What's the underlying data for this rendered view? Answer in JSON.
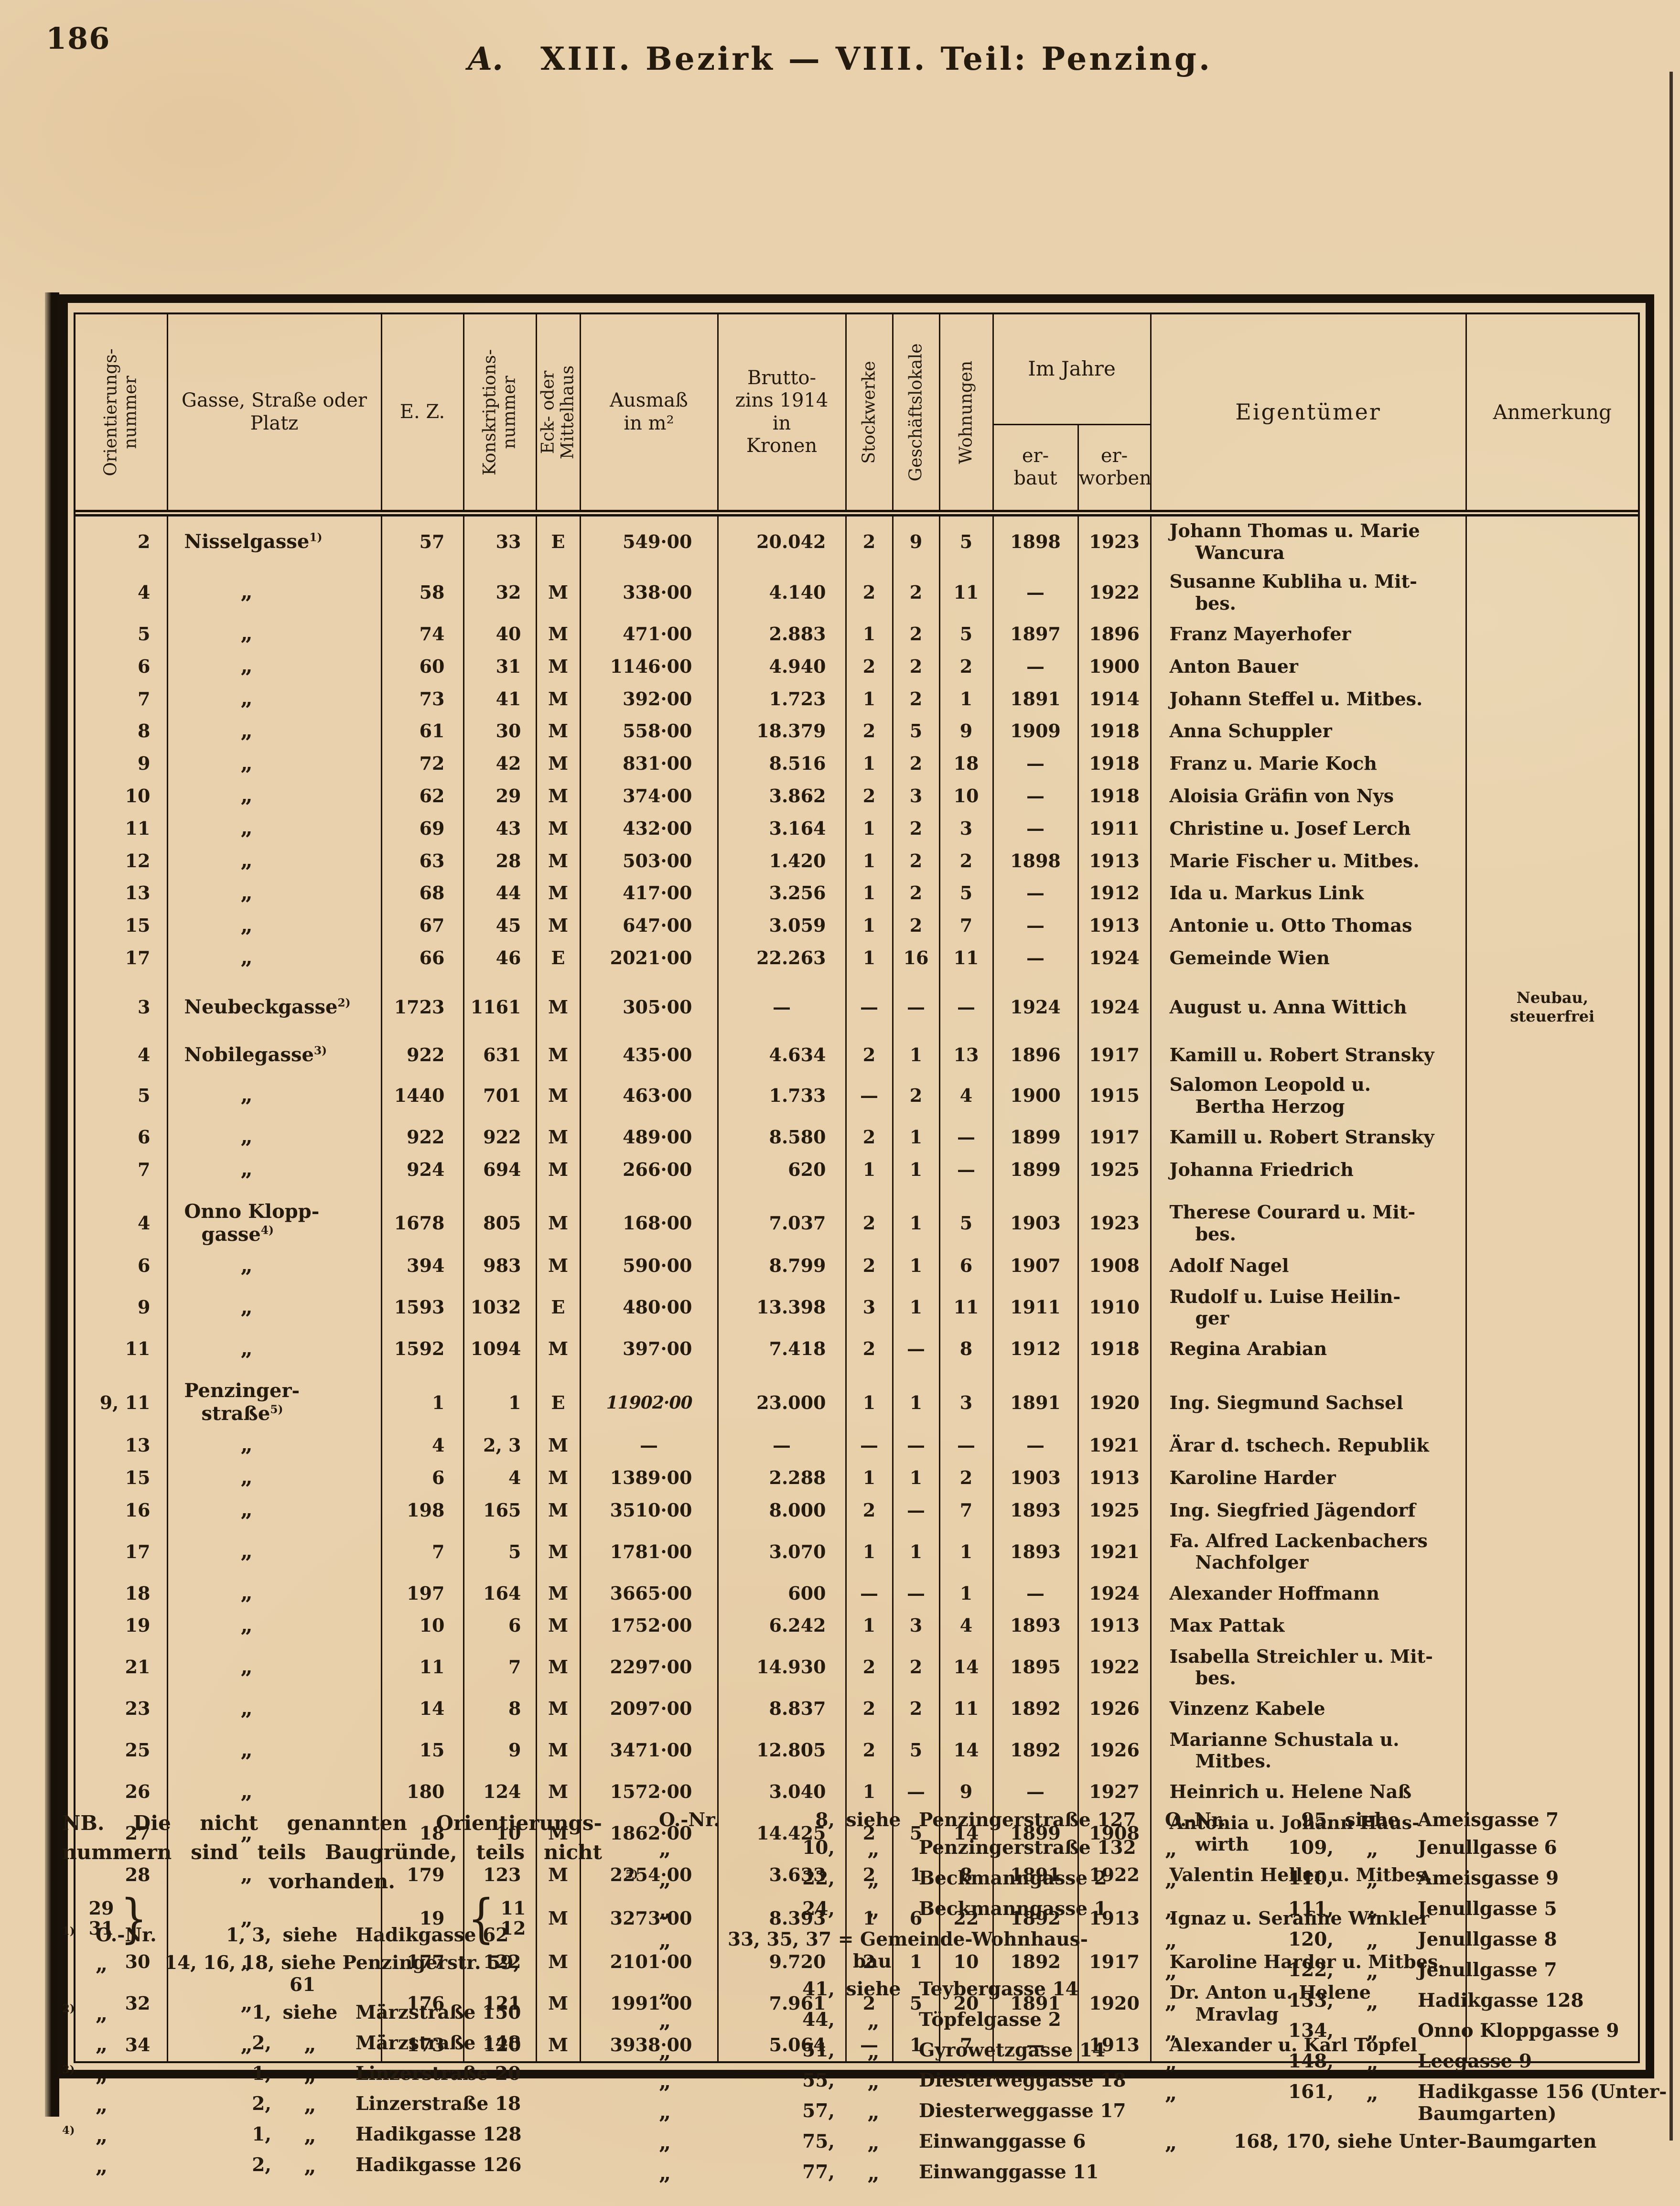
{
  "page": {
    "number": "186",
    "title_prefix": "A.",
    "title": "XIII. Bezirk — VIII. Teil: Penzing."
  },
  "table": {
    "headers": {
      "orient": "Orientierungs-\nnummer",
      "gasse": "Gasse, Straße oder\nPlatz",
      "ez": "E. Z.",
      "konskr": "Konskriptions-\nnummer",
      "eck": "Eck- oder\nMittelhaus",
      "ausmass": "Ausmaß\nin m²",
      "brutto": "Brutto-\nzins 1914\nin\nKronen",
      "stock": "Stockwerke",
      "gesch": "Geschäftslokale",
      "wohn": "Wohnungen",
      "im_jahre": "Im Jahre",
      "erbaut": "er-\nbaut",
      "erworben": "er-\nworben",
      "eigentuemer": "Eigentümer",
      "anmerkung": "Anmerkung"
    },
    "rows": [
      {
        "o": "2",
        "s": {
          "t": "Nisselgasse",
          "fn": "1"
        },
        "ez": "57",
        "k": "33",
        "em": "E",
        "a": "549·00",
        "b": "20.042",
        "st": "2",
        "g": "9",
        "w": "5",
        "eb": "1898",
        "ew": "1923",
        "own": "Johann Thomas u. Marie\nWancura"
      },
      {
        "o": "4",
        "s": "„",
        "ez": "58",
        "k": "32",
        "em": "M",
        "a": "338·00",
        "b": "4.140",
        "st": "2",
        "g": "2",
        "w": "11",
        "eb": "—",
        "ew": "1922",
        "own": "Susanne Kubliha u. Mit-\nbes."
      },
      {
        "o": "5",
        "s": "„",
        "ez": "74",
        "k": "40",
        "em": "M",
        "a": "471·00",
        "b": "2.883",
        "st": "1",
        "g": "2",
        "w": "5",
        "eb": "1897",
        "ew": "1896",
        "own": "Franz Mayerhofer"
      },
      {
        "o": "6",
        "s": "„",
        "ez": "60",
        "k": "31",
        "em": "M",
        "a": "1146·00",
        "b": "4.940",
        "st": "2",
        "g": "2",
        "w": "2",
        "eb": "—",
        "ew": "1900",
        "own": "Anton Bauer"
      },
      {
        "o": "7",
        "s": "„",
        "ez": "73",
        "k": "41",
        "em": "M",
        "a": "392·00",
        "b": "1.723",
        "st": "1",
        "g": "2",
        "w": "1",
        "eb": "1891",
        "ew": "1914",
        "own": "Johann Steffel u. Mitbes."
      },
      {
        "o": "8",
        "s": "„",
        "ez": "61",
        "k": "30",
        "em": "M",
        "a": "558·00",
        "b": "18.379",
        "st": "2",
        "g": "5",
        "w": "9",
        "eb": "1909",
        "ew": "1918",
        "own": "Anna Schuppler"
      },
      {
        "o": "9",
        "s": "„",
        "ez": "72",
        "k": "42",
        "em": "M",
        "a": "831·00",
        "b": "8.516",
        "st": "1",
        "g": "2",
        "w": "18",
        "eb": "—",
        "ew": "1918",
        "own": "Franz u. Marie Koch"
      },
      {
        "o": "10",
        "s": "„",
        "ez": "62",
        "k": "29",
        "em": "M",
        "a": "374·00",
        "b": "3.862",
        "st": "2",
        "g": "3",
        "w": "10",
        "eb": "—",
        "ew": "1918",
        "own": "Aloisia Gräfin von Nys"
      },
      {
        "o": "11",
        "s": "„",
        "ez": "69",
        "k": "43",
        "em": "M",
        "a": "432·00",
        "b": "3.164",
        "st": "1",
        "g": "2",
        "w": "3",
        "eb": "—",
        "ew": "1911",
        "own": "Christine u. Josef Lerch"
      },
      {
        "o": "12",
        "s": "„",
        "ez": "63",
        "k": "28",
        "em": "M",
        "a": "503·00",
        "b": "1.420",
        "st": "1",
        "g": "2",
        "w": "2",
        "eb": "1898",
        "ew": "1913",
        "own": "Marie Fischer u. Mitbes."
      },
      {
        "o": "13",
        "s": "„",
        "ez": "68",
        "k": "44",
        "em": "M",
        "a": "417·00",
        "b": "3.256",
        "st": "1",
        "g": "2",
        "w": "5",
        "eb": "—",
        "ew": "1912",
        "own": "Ida u. Markus Link"
      },
      {
        "o": "15",
        "s": "„",
        "ez": "67",
        "k": "45",
        "em": "M",
        "a": "647·00",
        "b": "3.059",
        "st": "1",
        "g": "2",
        "w": "7",
        "eb": "—",
        "ew": "1913",
        "own": "Antonie u. Otto Thomas"
      },
      {
        "o": "17",
        "s": "„",
        "ez": "66",
        "k": "46",
        "em": "E",
        "a": "2021·00",
        "b": "22.263",
        "st": "1",
        "g": "16",
        "w": "11",
        "eb": "—",
        "ew": "1924",
        "own": "Gemeinde Wien"
      },
      {
        "o": "3",
        "s": {
          "t": "Neubeckgasse",
          "fn": "2"
        },
        "ez": "1723",
        "k": "1161",
        "em": "M",
        "a": "305·00",
        "b": "—",
        "st": "—",
        "g": "—",
        "w": "—",
        "eb": "1924",
        "ew": "1924",
        "own": "August u. Anna Wittich",
        "anm": "Neubau,\nsteuerfrei",
        "sec": true
      },
      {
        "o": "4",
        "s": {
          "t": "Nobilegasse",
          "fn": "3"
        },
        "ez": "922",
        "k": "631",
        "em": "M",
        "a": "435·00",
        "b": "4.634",
        "st": "2",
        "g": "1",
        "w": "13",
        "eb": "1896",
        "ew": "1917",
        "own": "Kamill u. Robert Stransky",
        "sec": true
      },
      {
        "o": "5",
        "s": "„",
        "ez": "1440",
        "k": "701",
        "em": "M",
        "a": "463·00",
        "b": "1.733",
        "st": "—",
        "g": "2",
        "w": "4",
        "eb": "1900",
        "ew": "1915",
        "own": "Salomon Leopold u.\nBertha Herzog"
      },
      {
        "o": "6",
        "s": "„",
        "ez": "922",
        "k": "922",
        "em": "M",
        "a": "489·00",
        "b": "8.580",
        "st": "2",
        "g": "1",
        "w": "—",
        "eb": "1899",
        "ew": "1917",
        "own": "Kamill u. Robert Stransky"
      },
      {
        "o": "7",
        "s": "„",
        "ez": "924",
        "k": "694",
        "em": "M",
        "a": "266·00",
        "b": "620",
        "st": "1",
        "g": "1",
        "w": "—",
        "eb": "1899",
        "ew": "1925",
        "own": "Johanna Friedrich"
      },
      {
        "o": "4",
        "s": {
          "t": "Onno Klopp-\ngasse",
          "fn": "4"
        },
        "ez": "1678",
        "k": "805",
        "em": "M",
        "a": "168·00",
        "b": "7.037",
        "st": "2",
        "g": "1",
        "w": "5",
        "eb": "1903",
        "ew": "1923",
        "own": "Therese Courard u. Mit-\nbes.",
        "sec": true
      },
      {
        "o": "6",
        "s": "„",
        "ez": "394",
        "k": "983",
        "em": "M",
        "a": "590·00",
        "b": "8.799",
        "st": "2",
        "g": "1",
        "w": "6",
        "eb": "1907",
        "ew": "1908",
        "own": "Adolf Nagel"
      },
      {
        "o": "9",
        "s": "„",
        "ez": "1593",
        "k": "1032",
        "em": "E",
        "a": "480·00",
        "b": "13.398",
        "st": "3",
        "g": "1",
        "w": "11",
        "eb": "1911",
        "ew": "1910",
        "own": "Rudolf u. Luise Heilin-\nger"
      },
      {
        "o": "11",
        "s": "„",
        "ez": "1592",
        "k": "1094",
        "em": "M",
        "a": "397·00",
        "b": "7.418",
        "st": "2",
        "g": "—",
        "w": "8",
        "eb": "1912",
        "ew": "1918",
        "own": "Regina Arabian"
      },
      {
        "o": "9, 11",
        "s": {
          "t": "Penzinger-\nstraße",
          "fn": "5"
        },
        "ez": "1",
        "k": "1",
        "em": "E",
        "a": "11902·00",
        "a_alt": true,
        "b": "23.000",
        "st": "1",
        "g": "1",
        "w": "3",
        "eb": "1891",
        "ew": "1920",
        "own": "Ing. Siegmund Sachsel",
        "sec": true
      },
      {
        "o": "13",
        "s": "„",
        "ez": "4",
        "k": "2, 3",
        "em": "M",
        "a": "—",
        "b": "—",
        "st": "—",
        "g": "—",
        "w": "—",
        "eb": "—",
        "ew": "1921",
        "own": "Ärar d. tschech. Republik"
      },
      {
        "o": "15",
        "s": "„",
        "ez": "6",
        "k": "4",
        "em": "M",
        "a": "1389·00",
        "b": "2.288",
        "st": "1",
        "g": "1",
        "w": "2",
        "eb": "1903",
        "ew": "1913",
        "own": "Karoline Harder"
      },
      {
        "o": "16",
        "s": "„",
        "ez": "198",
        "k": "165",
        "em": "M",
        "a": "3510·00",
        "b": "8.000",
        "st": "2",
        "g": "—",
        "w": "7",
        "eb": "1893",
        "ew": "1925",
        "own": "Ing. Siegfried Jägendorf"
      },
      {
        "o": "17",
        "s": "„",
        "ez": "7",
        "k": "5",
        "em": "M",
        "a": "1781·00",
        "b": "3.070",
        "st": "1",
        "g": "1",
        "w": "1",
        "eb": "1893",
        "ew": "1921",
        "own": "Fa. Alfred Lackenbachers\nNachfolger"
      },
      {
        "o": "18",
        "s": "„",
        "ez": "197",
        "k": "164",
        "em": "M",
        "a": "3665·00",
        "b": "600",
        "st": "—",
        "g": "—",
        "w": "1",
        "eb": "—",
        "ew": "1924",
        "own": "Alexander Hoffmann"
      },
      {
        "o": "19",
        "s": "„",
        "ez": "10",
        "k": "6",
        "em": "M",
        "a": "1752·00",
        "b": "6.242",
        "st": "1",
        "g": "3",
        "w": "4",
        "eb": "1893",
        "ew": "1913",
        "own": "Max Pattak"
      },
      {
        "o": "21",
        "s": "„",
        "ez": "11",
        "k": "7",
        "em": "M",
        "a": "2297·00",
        "b": "14.930",
        "st": "2",
        "g": "2",
        "w": "14",
        "eb": "1895",
        "ew": "1922",
        "own": "Isabella Streichler u. Mit-\nbes."
      },
      {
        "o": "23",
        "s": "„",
        "ez": "14",
        "k": "8",
        "em": "M",
        "a": "2097·00",
        "b": "8.837",
        "st": "2",
        "g": "2",
        "w": "11",
        "eb": "1892",
        "ew": "1926",
        "own": "Vinzenz Kabele"
      },
      {
        "o": "25",
        "s": "„",
        "ez": "15",
        "k": "9",
        "em": "M",
        "a": "3471·00",
        "b": "12.805",
        "st": "2",
        "g": "5",
        "w": "14",
        "eb": "1892",
        "ew": "1926",
        "own": "Marianne Schustala u.\nMitbes."
      },
      {
        "o": "26",
        "s": "„",
        "ez": "180",
        "k": "124",
        "em": "M",
        "a": "1572·00",
        "b": "3.040",
        "st": "1",
        "g": "—",
        "w": "9",
        "eb": "—",
        "ew": "1927",
        "own": "Heinrich u. Helene Naß"
      },
      {
        "o": "27",
        "s": "„",
        "ez": "18",
        "k": "10",
        "em": "M",
        "a": "1862·00",
        "b": "14.425",
        "st": "2",
        "g": "5",
        "w": "14",
        "eb": "1899",
        "ew": "1908",
        "own": "Antonia u. Johann Haus-\nwirth"
      },
      {
        "o": "28",
        "s": "„",
        "ez": "179",
        "k": "123",
        "em": "M",
        "a": "2254·00",
        "b": "3.633",
        "st": "2",
        "g": "1",
        "w": "8",
        "eb": "1891",
        "ew": "1922",
        "own": "Valentin Heller u. Mitbes."
      },
      {
        "o": "29\n31",
        "o_brace": true,
        "s": "„",
        "ez": "19",
        "k": "11\n12",
        "k_brace": true,
        "em": "M",
        "a": "3273·00",
        "b": "8.393",
        "st": "1",
        "g": "6",
        "w": "22",
        "eb": "1892",
        "ew": "1913",
        "own": "Ignaz u. Serafine Winkler"
      },
      {
        "o": "30",
        "s": "„",
        "ez": "177",
        "k": "122",
        "em": "M",
        "a": "2101·00",
        "b": "9.720",
        "st": "2",
        "g": "1",
        "w": "10",
        "eb": "1892",
        "ew": "1917",
        "own": "Karoline Harder u. Mitbes."
      },
      {
        "o": "32",
        "s": "„",
        "ez": "176",
        "k": "121",
        "em": "M",
        "a": "1991·00",
        "b": "7.961",
        "st": "2",
        "g": "5",
        "w": "20",
        "eb": "1891",
        "ew": "1920",
        "own": "Dr. Anton u. Helene\nMravlag"
      },
      {
        "o": "34",
        "s": "„",
        "ez": "173",
        "k": "120",
        "em": "M",
        "a": "3938·00",
        "b": "5.064",
        "st": "—",
        "g": "1",
        "w": "7",
        "eb": "—",
        "ew": "1913",
        "own": "Alexander u. Karl Töpfel"
      }
    ]
  },
  "notes": {
    "nb": [
      "NB.  Die  nicht  genannten  Orientierungs-",
      "nummern sind teils Baugründe, teils nicht",
      "vorhanden."
    ],
    "left": [
      {
        "m": "1",
        "c1": "O.-Nr.",
        "n": "1, 3,",
        "c2": "siehe",
        "t": "Hadikgasse 62"
      },
      {
        "c1": "„",
        "full": "14, 16, 18, siehe Penzingerstr. 59,\n61"
      },
      {
        "m": "2",
        "c1": "„",
        "n": "1,",
        "c2": "siehe",
        "t": "Märzstraße 150"
      },
      {
        "c1": "„",
        "n": "2,",
        "c2": "„",
        "t": "Märzstraße 148"
      },
      {
        "m": "3",
        "c1": "„",
        "n": "1,",
        "c2": "„",
        "t": "Linzerstraße 20"
      },
      {
        "c1": "„",
        "n": "2,",
        "c2": "„",
        "t": "Linzerstraße 18"
      },
      {
        "m": "4",
        "c1": "„",
        "n": "1,",
        "c2": "„",
        "t": "Hadikgasse 128"
      },
      {
        "c1": "„",
        "n": "2,",
        "c2": "„",
        "t": "Hadikgasse 126"
      }
    ],
    "middle": [
      {
        "c1": "O.-Nr.",
        "n": "8,",
        "c2": "siehe",
        "t": "Penzingerstraße 127"
      },
      {
        "c1": "„",
        "n": "10,",
        "c2": "„",
        "t": "Penzingerstraße 132"
      },
      {
        "m": "5",
        "c1": "„",
        "n": "22,",
        "c2": "„",
        "t": "Beckmanngasse 2"
      },
      {
        "c1": "„",
        "n": "24,",
        "c2": "„",
        "t": "Beckmanngasse 1"
      },
      {
        "c1": "„",
        "full": "33, 35, 37 = Gemeinde-Wohnhaus-\nbau"
      },
      {
        "c1": "„",
        "n": "41,",
        "c2": "siehe",
        "t": "Teybergasse 14"
      },
      {
        "c1": "„",
        "n": "44,",
        "c2": "„",
        "t": "Töpfelgasse 2"
      },
      {
        "c1": "„",
        "n": "51,",
        "c2": "„",
        "t": "Gyrowetzgasse 14"
      },
      {
        "c1": "„",
        "n": "55,",
        "c2": "„",
        "t": "Diesterweggasse 18"
      },
      {
        "c1": "„",
        "n": "57,",
        "c2": "„",
        "t": "Diesterweggasse 17"
      },
      {
        "c1": "„",
        "n": "75,",
        "c2": "„",
        "t": "Einwanggasse  6"
      },
      {
        "c1": "„",
        "n": "77,",
        "c2": "„",
        "t": "Einwanggasse 11"
      }
    ],
    "right": [
      {
        "c1": "O.-Nr.",
        "n": "95,",
        "c2": "siehe",
        "t": "Ameisgasse 7"
      },
      {
        "c1": "„",
        "n": "109,",
        "c2": "„",
        "t": "Jenullgasse 6"
      },
      {
        "c1": "„",
        "n": "110,",
        "c2": "„",
        "t": "Ameisgasse 9"
      },
      {
        "c1": "„",
        "n": "111,",
        "c2": "„",
        "t": "Jenullgasse 5"
      },
      {
        "c1": "„",
        "n": "120,",
        "c2": "„",
        "t": "Jenullgasse 8"
      },
      {
        "c1": "„",
        "n": "122,",
        "c2": "„",
        "t": "Jenullgasse 7"
      },
      {
        "c1": "„",
        "n": "133,",
        "c2": "„",
        "t": "Hadikgasse 128"
      },
      {
        "c1": "„",
        "n": "134,",
        "c2": "„",
        "t": "Onno Kloppgasse 9"
      },
      {
        "c1": "„",
        "n": "148,",
        "c2": "„",
        "t": "Leegasse 9"
      },
      {
        "c1": "„",
        "n": "161,",
        "c2": "„",
        "t": "Hadikgasse 156 (Unter-\nBaumgarten)"
      },
      {
        "c1": "„",
        "full": "168, 170, siehe Unter-Baumgarten"
      }
    ]
  }
}
